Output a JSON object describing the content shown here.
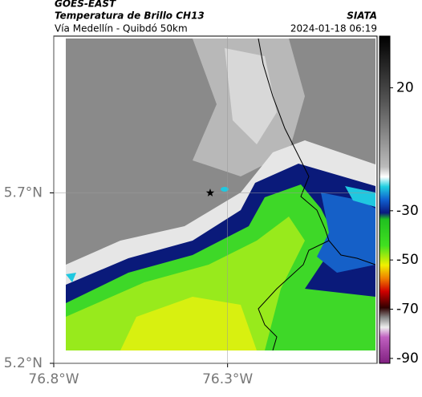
{
  "chart_data": {
    "type": "map",
    "title": "GOES-EAST",
    "subtitle": "Temperatura de Brillo CH13",
    "caption": "Vía Medellín - Quibdó 50km",
    "source": "SIATA",
    "timestamp": "2024-01-18 06:19",
    "xlim": [
      -76.8,
      -75.87
    ],
    "ylim": [
      5.2,
      6.16
    ],
    "xticks": [
      {
        "value": -76.8,
        "label": "76.8°W"
      },
      {
        "value": -76.3,
        "label": "76.3°W"
      }
    ],
    "yticks": [
      {
        "value": 5.2,
        "label": "5.2°N"
      },
      {
        "value": 5.7,
        "label": "5.7°N"
      }
    ],
    "grid": true,
    "marker": {
      "lon": -76.35,
      "lat": 5.7
    },
    "colorbar": {
      "lim": [
        -92,
        41
      ],
      "ticks": [
        20,
        -30,
        -50,
        -70,
        -90
      ]
    }
  }
}
